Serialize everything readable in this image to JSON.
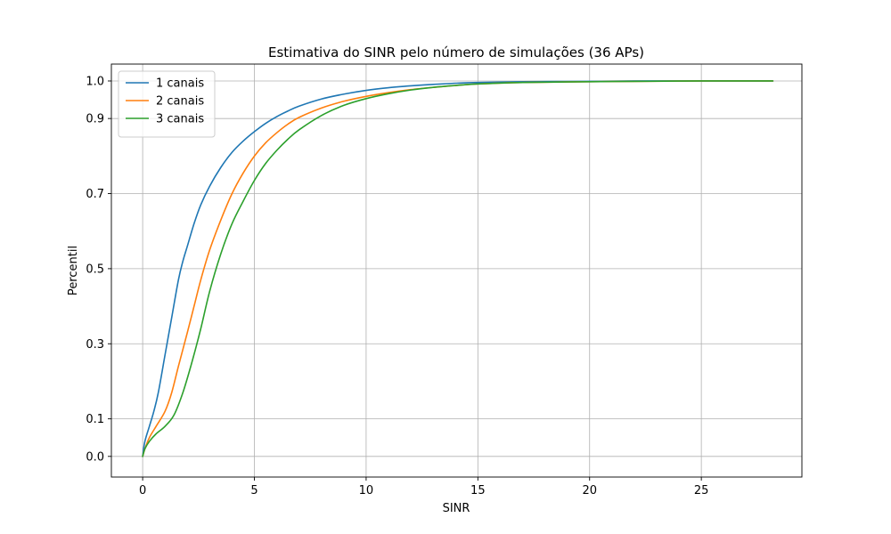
{
  "chart_data": {
    "type": "line",
    "title": "Estimativa do SINR pelo número de simulações (36 APs)",
    "xlabel": "SINR",
    "ylabel": "Percentil",
    "xlim": [
      -1.4,
      29.5
    ],
    "ylim": [
      -0.055,
      1.045
    ],
    "xticks": [
      0,
      5,
      10,
      15,
      20,
      25
    ],
    "xtick_labels": [
      "0",
      "5",
      "10",
      "15",
      "20",
      "25"
    ],
    "yticks": [
      0.0,
      0.1,
      0.3,
      0.5,
      0.7,
      0.9,
      1.0
    ],
    "ytick_labels": [
      "0.0",
      "0.1",
      "0.3",
      "0.5",
      "0.7",
      "0.9",
      "1.0"
    ],
    "grid": true,
    "legend_position": "upper-left",
    "series": [
      {
        "name": "1 canais",
        "color": "#1f77b4",
        "x": [
          0,
          0.1,
          0.3,
          0.5,
          0.7,
          1.0,
          1.3,
          1.6,
          1.8,
          2.0,
          2.3,
          2.6,
          3.0,
          3.5,
          4.0,
          4.5,
          5.0,
          5.5,
          6.0,
          6.5,
          7.0,
          8.0,
          9.0,
          10.0,
          11.0,
          12.0,
          13.0,
          14.0,
          15.0,
          17.0,
          20.0,
          22.0,
          25.0,
          28.2
        ],
        "y": [
          0.0,
          0.04,
          0.08,
          0.12,
          0.17,
          0.27,
          0.37,
          0.47,
          0.52,
          0.56,
          0.62,
          0.67,
          0.72,
          0.77,
          0.81,
          0.84,
          0.865,
          0.887,
          0.905,
          0.92,
          0.933,
          0.952,
          0.965,
          0.975,
          0.982,
          0.987,
          0.991,
          0.994,
          0.996,
          0.998,
          0.999,
          1.0,
          1.0,
          1.0
        ]
      },
      {
        "name": "2 canais",
        "color": "#ff7f0e",
        "x": [
          0,
          0.1,
          0.3,
          0.6,
          1.0,
          1.3,
          1.6,
          2.0,
          2.3,
          2.6,
          3.0,
          3.5,
          4.0,
          4.5,
          5.0,
          5.5,
          6.0,
          6.5,
          7.0,
          8.0,
          9.0,
          10.0,
          11.0,
          12.0,
          13.0,
          14.0,
          15.0,
          17.0,
          20.0,
          22.0,
          25.0,
          28.2
        ],
        "y": [
          0.0,
          0.02,
          0.05,
          0.08,
          0.12,
          0.17,
          0.24,
          0.33,
          0.4,
          0.47,
          0.55,
          0.63,
          0.7,
          0.755,
          0.8,
          0.835,
          0.862,
          0.885,
          0.903,
          0.928,
          0.946,
          0.959,
          0.969,
          0.977,
          0.983,
          0.988,
          0.992,
          0.996,
          0.998,
          0.999,
          1.0,
          1.0
        ]
      },
      {
        "name": "3 canais",
        "color": "#2ca02c",
        "x": [
          0,
          0.1,
          0.3,
          0.6,
          1.0,
          1.4,
          1.8,
          2.2,
          2.6,
          3.0,
          3.5,
          4.0,
          4.5,
          5.0,
          5.5,
          6.0,
          6.5,
          7.0,
          8.0,
          9.0,
          10.0,
          11.0,
          12.0,
          13.0,
          14.0,
          15.0,
          17.0,
          20.0,
          22.0,
          25.0,
          28.2
        ],
        "y": [
          0.0,
          0.02,
          0.04,
          0.06,
          0.08,
          0.11,
          0.17,
          0.25,
          0.34,
          0.44,
          0.54,
          0.62,
          0.68,
          0.735,
          0.78,
          0.815,
          0.845,
          0.87,
          0.908,
          0.935,
          0.953,
          0.966,
          0.976,
          0.983,
          0.988,
          0.992,
          0.996,
          0.998,
          0.999,
          1.0,
          1.0
        ]
      }
    ]
  }
}
